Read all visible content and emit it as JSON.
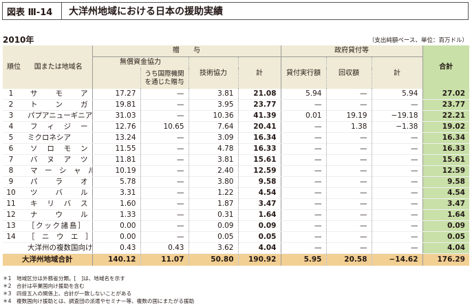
{
  "header": {
    "figure_label": "図表 Ⅲ-14",
    "title": "大洋州地域における日本の援助実績"
  },
  "year": "2010年",
  "unit_note": "（支出純額ベース、単位：百万ドル）",
  "columns": {
    "no": "順位",
    "country": "国または地域名",
    "grant": "贈　　与",
    "grant_aid": "無償資金協力",
    "via_intl": "うち国際機関を通じた贈与",
    "tech": "技術協力",
    "grant_sum": "計",
    "loans": "政府貸付等",
    "disbursed": "貸付実行額",
    "recovered": "回収額",
    "loan_sum": "計",
    "total": "合計"
  },
  "rows": [
    {
      "no": "1",
      "name": "サ　モ　ア",
      "grant_aid": "17.27",
      "via_intl": "—",
      "tech": "3.81",
      "grant_sum": "21.08",
      "disbursed": "5.94",
      "recovered": "—",
      "loan_sum": "5.94",
      "total": "27.02"
    },
    {
      "no": "2",
      "name": "ト　ン　ガ",
      "grant_aid": "19.81",
      "via_intl": "—",
      "tech": "3.95",
      "grant_sum": "23.77",
      "disbursed": "—",
      "recovered": "—",
      "loan_sum": "—",
      "total": "23.77"
    },
    {
      "no": "3",
      "name": "パプアニューギニア",
      "grant_aid": "31.03",
      "via_intl": "—",
      "tech": "10.36",
      "grant_sum": "41.39",
      "disbursed": "0.01",
      "recovered": "19.19",
      "loan_sum": "−19.18",
      "total": "22.21"
    },
    {
      "no": "4",
      "name": "フ　ィ　ジ　ー",
      "grant_aid": "12.76",
      "via_intl": "10.65",
      "tech": "7.64",
      "grant_sum": "20.41",
      "disbursed": "—",
      "recovered": "1.38",
      "loan_sum": "−1.38",
      "total": "19.02"
    },
    {
      "no": "5",
      "name": "ミクロネシア",
      "grant_aid": "13.24",
      "via_intl": "—",
      "tech": "3.09",
      "grant_sum": "16.34",
      "disbursed": "—",
      "recovered": "—",
      "loan_sum": "—",
      "total": "16.34"
    },
    {
      "no": "6",
      "name": "ソ　ロ　モ　ン",
      "grant_aid": "11.55",
      "via_intl": "—",
      "tech": "4.78",
      "grant_sum": "16.33",
      "disbursed": "—",
      "recovered": "—",
      "loan_sum": "—",
      "total": "16.33"
    },
    {
      "no": "7",
      "name": "バ　ヌ　ア　ツ",
      "grant_aid": "11.81",
      "via_intl": "—",
      "tech": "3.81",
      "grant_sum": "15.61",
      "disbursed": "—",
      "recovered": "—",
      "loan_sum": "—",
      "total": "15.61"
    },
    {
      "no": "8",
      "name": "マ　ー　シ　ャ　ル",
      "grant_aid": "10.19",
      "via_intl": "—",
      "tech": "2.40",
      "grant_sum": "12.59",
      "disbursed": "—",
      "recovered": "—",
      "loan_sum": "—",
      "total": "12.59"
    },
    {
      "no": "9",
      "name": "パ　ラ　オ",
      "grant_aid": "5.78",
      "via_intl": "—",
      "tech": "3.80",
      "grant_sum": "9.58",
      "disbursed": "—",
      "recovered": "—",
      "loan_sum": "—",
      "total": "9.58"
    },
    {
      "no": "10",
      "name": "ツ　バ　ル",
      "grant_aid": "3.31",
      "via_intl": "—",
      "tech": "1.22",
      "grant_sum": "4.54",
      "disbursed": "—",
      "recovered": "—",
      "loan_sum": "—",
      "total": "4.54"
    },
    {
      "no": "11",
      "name": "キ　リ　バ　ス",
      "grant_aid": "1.60",
      "via_intl": "—",
      "tech": "1.87",
      "grant_sum": "3.47",
      "disbursed": "—",
      "recovered": "—",
      "loan_sum": "—",
      "total": "3.47"
    },
    {
      "no": "12",
      "name": "ナ　ウ　ル",
      "grant_aid": "1.33",
      "via_intl": "—",
      "tech": "0.31",
      "grant_sum": "1.64",
      "disbursed": "—",
      "recovered": "—",
      "loan_sum": "—",
      "total": "1.64"
    },
    {
      "no": "13",
      "name": "［クック諸島］",
      "grant_aid": "0.00",
      "via_intl": "—",
      "tech": "0.09",
      "grant_sum": "0.09",
      "disbursed": "—",
      "recovered": "—",
      "loan_sum": "—",
      "total": "0.09"
    },
    {
      "no": "14",
      "name": "［　ニ　ウ　エ　］",
      "grant_aid": "0.00",
      "via_intl": "—",
      "tech": "0.05",
      "grant_sum": "0.05",
      "disbursed": "—",
      "recovered": "—",
      "loan_sum": "—",
      "total": "0.05"
    },
    {
      "no": "",
      "name": "大洋州の複数国向け",
      "grant_aid": "0.43",
      "via_intl": "0.43",
      "tech": "3.62",
      "grant_sum": "4.04",
      "disbursed": "—",
      "recovered": "—",
      "loan_sum": "—",
      "total": "4.04"
    }
  ],
  "grand_total": {
    "name": "大洋州地域合計",
    "grant_aid": "140.12",
    "via_intl": "11.07",
    "tech": "50.80",
    "grant_sum": "190.92",
    "disbursed": "5.95",
    "recovered": "20.58",
    "loan_sum": "−14.62",
    "total": "176.29"
  },
  "notes": [
    "＊1　地域区分は外務省分類。[　]は、地域名を示す",
    "＊2　合計は卒業国向け援助を含む",
    "＊3　四捨五入の関係上、合計が一致しないことがある",
    "＊4　複数国向け援助とは、調査団の派遣やセミナー等、複数の国にまたがる援助"
  ],
  "colors": {
    "header_bg": "#f0ebd6",
    "total_col_bg": "#c9e0a9",
    "grand_total_bg": "#f2cf93"
  }
}
